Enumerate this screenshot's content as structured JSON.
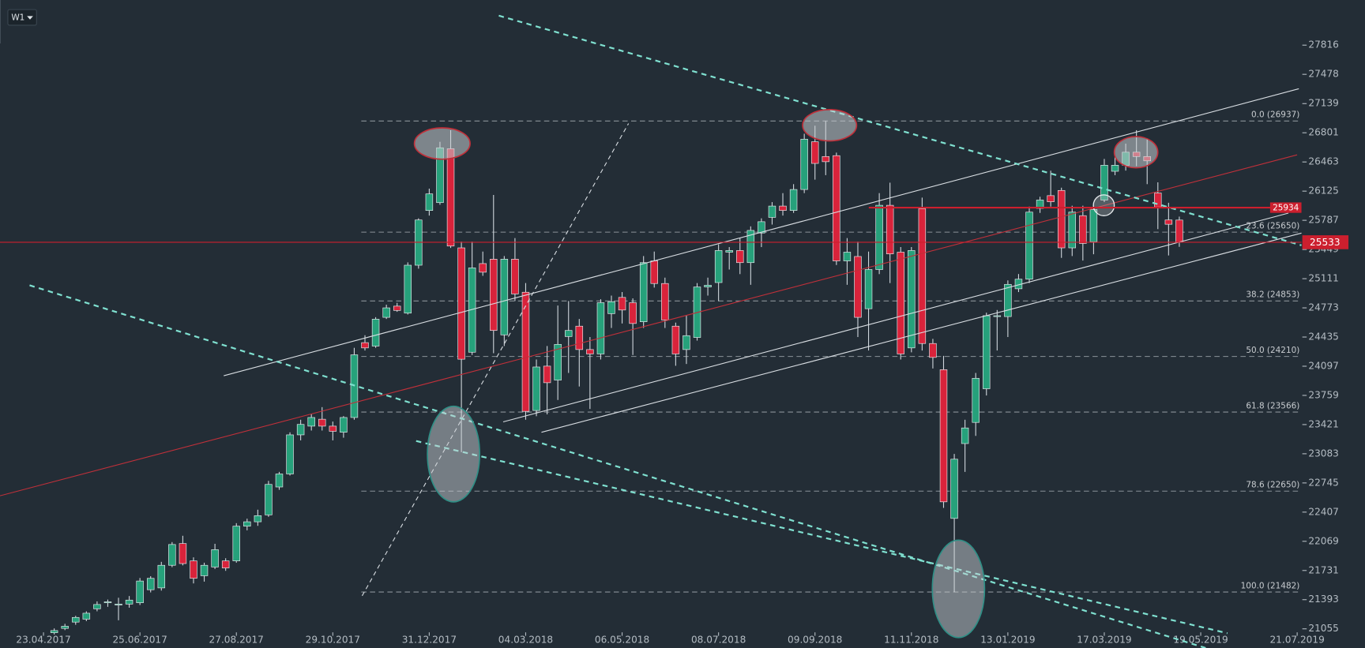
{
  "toolbar": {
    "timeframe": "W1"
  },
  "chart_data": {
    "type": "candlestick",
    "up_color": "#26a17b",
    "down_color": "#d9233b",
    "wick_color": "#cfd6dc",
    "ylim": [
      20833,
      28339
    ],
    "yticks": [
      21055,
      21393,
      21731,
      22069,
      22407,
      22745,
      23083,
      23421,
      23759,
      24097,
      24435,
      24773,
      25111,
      25449,
      25787,
      26125,
      26463,
      26801,
      27139,
      27478,
      27816
    ],
    "xlim": [
      -5.06,
      116.4
    ],
    "xticks": [
      {
        "value": -1,
        "label": "23.04.2017"
      },
      {
        "value": 8,
        "label": "25.06.2017"
      },
      {
        "value": 17,
        "label": "27.08.2017"
      },
      {
        "value": 26,
        "label": "29.10.2017"
      },
      {
        "value": 35,
        "label": "31.12.2017"
      },
      {
        "value": 44,
        "label": "04.03.2018"
      },
      {
        "value": 53,
        "label": "06.05.2018"
      },
      {
        "value": 62,
        "label": "08.07.2018"
      },
      {
        "value": 71,
        "label": "09.09.2018"
      },
      {
        "value": 80,
        "label": "11.11.2018"
      },
      {
        "value": 89,
        "label": "13.01.2019"
      },
      {
        "value": 98,
        "label": "17.03.2019"
      },
      {
        "value": 107,
        "label": "19.05.2019"
      },
      {
        "value": 116,
        "label": "21.07.2019"
      }
    ],
    "open": [
      21010,
      21060,
      21133,
      21167,
      21287,
      21357,
      21331,
      21342,
      21357,
      21508,
      21529,
      21791,
      22043,
      21842,
      21670,
      21771,
      21842,
      21842,
      22244,
      22295,
      22375,
      22698,
      22849,
      23302,
      23403,
      23483,
      23403,
      23332,
      23503,
      24370,
      24330,
      24663,
      24793,
      24712,
      25267,
      25901,
      25992,
      26616,
      25468,
      24259,
      25286,
      25337,
      24460,
      25337,
      24954,
      23584,
      24098,
      23936,
      24441,
      24561,
      24290,
      24239,
      24706,
      24894,
      24833,
      24612,
      25317,
      25055,
      24561,
      24290,
      24430,
      25015,
      25066,
      25418,
      25437,
      25297,
      25640,
      25821,
      25952,
      25901,
      26144,
      26697,
      26526,
      26536,
      25317,
      25368,
      24763,
      25217,
      25961,
      25418,
      24309,
      25922,
      24360,
      24057,
      22334,
      23201,
      23446,
      23836,
      24672,
      24672,
      24994,
      25105,
      25925,
      26073,
      26133,
      25468,
      25841,
      25538,
      26022,
      26355,
      26425,
      26576,
      26526,
      26103,
      25791,
      25790
    ],
    "high": [
      21060,
      21113,
      21206,
      21258,
      21373,
      21394,
      21415,
      21435,
      21644,
      21665,
      21831,
      22060,
      22133,
      21883,
      21821,
      22040,
      21873,
      22279,
      22331,
      22435,
      22769,
      22873,
      23331,
      23477,
      23540,
      23623,
      23456,
      23519,
      24310,
      24456,
      24665,
      24810,
      24831,
      25300,
      25810,
      26154,
      26696,
      26831,
      25540,
      25540,
      25425,
      26081,
      25373,
      25581,
      25060,
      24175,
      24331,
      24800,
      24852,
      24644,
      24435,
      24873,
      24915,
      24956,
      24883,
      25373,
      25425,
      25123,
      24602,
      24685,
      25060,
      25123,
      25508,
      25477,
      25581,
      25717,
      25810,
      25998,
      26102,
      26206,
      26790,
      26883,
      26937,
      26571,
      25581,
      25540,
      25425,
      26102,
      26223,
      25477,
      25477,
      26050,
      24414,
      24217,
      23081,
      23477,
      24019,
      24717,
      24748,
      25091,
      25165,
      25946,
      26060,
      26362,
      26165,
      25956,
      25956,
      25956,
      26498,
      26519,
      26675,
      26831,
      26727,
      26227,
      25990,
      25830
    ],
    "low": [
      20990,
      21040,
      21102,
      21144,
      21258,
      21310,
      21154,
      21300,
      21331,
      21477,
      21498,
      21769,
      21790,
      21581,
      21602,
      21748,
      21727,
      21821,
      22196,
      22248,
      22352,
      22665,
      22831,
      23238,
      23352,
      23352,
      23238,
      23269,
      23477,
      24279,
      24310,
      24644,
      24727,
      24696,
      25227,
      25842,
      25967,
      25467,
      23102,
      24227,
      25144,
      24248,
      24331,
      24852,
      23477,
      23518,
      23539,
      23706,
      24019,
      23862,
      23602,
      24175,
      24540,
      24592,
      24227,
      24540,
      25008,
      24540,
      24102,
      24123,
      24394,
      24915,
      24852,
      25217,
      25164,
      25040,
      25477,
      25738,
      25842,
      25873,
      26102,
      26258,
      26310,
      25269,
      25040,
      24435,
      24279,
      25164,
      25060,
      24175,
      24258,
      24279,
      24071,
      22456,
      21482,
      22873,
      23290,
      23758,
      24279,
      24435,
      24956,
      25060,
      25873,
      25946,
      25352,
      25373,
      25321,
      25394,
      25998,
      26310,
      26363,
      26415,
      26206,
      25685,
      25380,
      25480
    ],
    "close": [
      21035,
      21085,
      21187,
      21236,
      21337,
      21368,
      21342,
      21388,
      21609,
      21640,
      21791,
      22032,
      21811,
      21640,
      21791,
      21972,
      21760,
      22244,
      22295,
      22366,
      22728,
      22849,
      23302,
      23423,
      23503,
      23403,
      23343,
      23503,
      24229,
      24309,
      24642,
      24773,
      24743,
      25267,
      25791,
      26093,
      26627,
      25489,
      24178,
      25236,
      25186,
      24511,
      25337,
      24934,
      23574,
      24088,
      23906,
      24350,
      24511,
      24290,
      24239,
      24833,
      24844,
      24748,
      24592,
      25297,
      25055,
      24633,
      24239,
      24451,
      25015,
      25035,
      25437,
      25437,
      25297,
      25670,
      25771,
      25952,
      25901,
      26144,
      26727,
      26446,
      26466,
      25317,
      25418,
      24663,
      25217,
      25961,
      25398,
      24239,
      25437,
      24360,
      24199,
      22526,
      23020,
      23382,
      23957,
      24682,
      24682,
      25045,
      25105,
      25882,
      26022,
      26002,
      25468,
      25882,
      25519,
      25912,
      26425,
      26425,
      26576,
      26526,
      26476,
      25942,
      25741,
      25533
    ],
    "fib_levels": [
      {
        "value": 26937,
        "label": "0.0 (26937)"
      },
      {
        "value": 25650,
        "label": "23.6 (25650)"
      },
      {
        "value": 24853,
        "label": "38.2 (24853)"
      },
      {
        "value": 24210,
        "label": "50.0 (24210)"
      },
      {
        "value": 23566,
        "label": "61.8 (23566)"
      },
      {
        "value": 22650,
        "label": "78.6 (22650)"
      },
      {
        "value": 21482,
        "label": "100.0 (21482)"
      }
    ],
    "price_lines": [
      {
        "value": 25934,
        "color": "#cc1f2e"
      },
      {
        "value": 25533,
        "color": "#cc1f2e"
      }
    ]
  }
}
